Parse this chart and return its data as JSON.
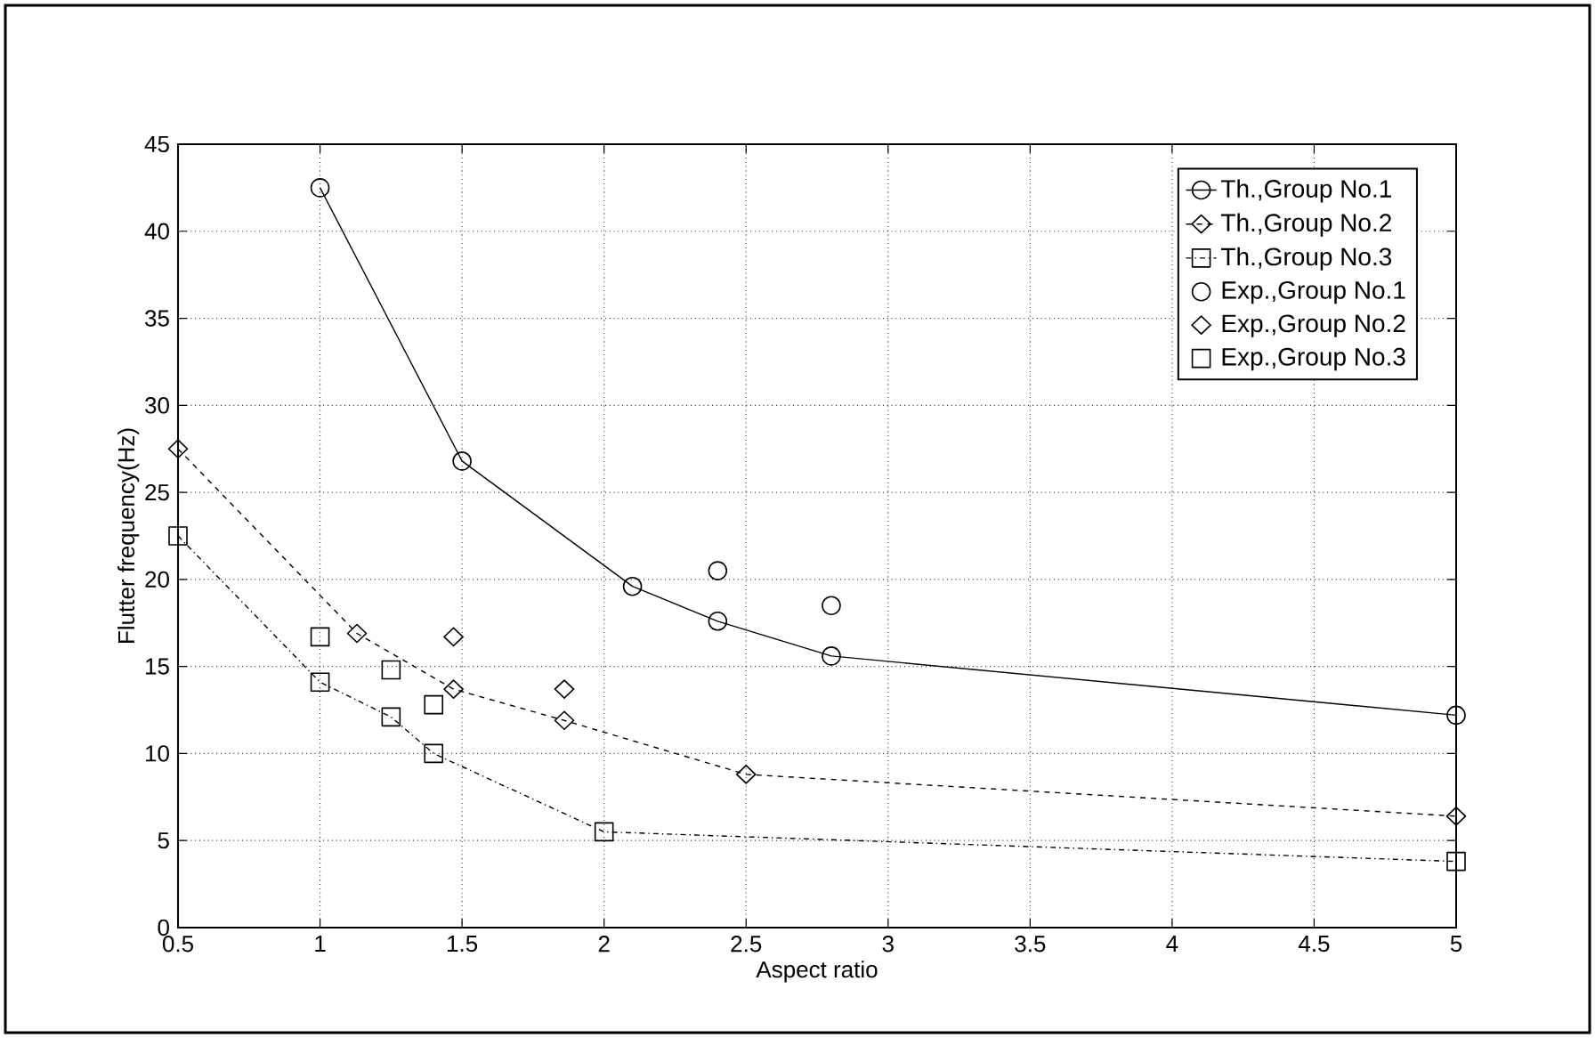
{
  "chart_data": {
    "type": "line",
    "xlabel": "Aspect ratio",
    "ylabel": "Flutter frequency(Hz)",
    "xlim": [
      0.5,
      5
    ],
    "ylim": [
      0,
      45
    ],
    "xticks": [
      0.5,
      1,
      1.5,
      2,
      2.5,
      3,
      3.5,
      4,
      4.5,
      5
    ],
    "yticks": [
      0,
      5,
      10,
      15,
      20,
      25,
      30,
      35,
      40,
      45
    ],
    "grid": true,
    "legend": "top right",
    "series": [
      {
        "name": "Th.,Group No.1",
        "color": "#000000",
        "marker": "circle",
        "line_style": "solid",
        "x": [
          1,
          1.5,
          2.1,
          2.4,
          2.8,
          5
        ],
        "values": [
          42.5,
          26.8,
          19.6,
          17.6,
          15.6,
          12.2
        ]
      },
      {
        "name": "Th.,Group No.2",
        "color": "#000000",
        "marker": "diamond",
        "line_style": "dashed",
        "x": [
          0.5,
          1.13,
          1.47,
          1.86,
          2.5,
          5
        ],
        "values": [
          27.5,
          16.9,
          13.7,
          11.9,
          8.8,
          6.4
        ]
      },
      {
        "name": "Th.,Group No.3",
        "color": "#000000",
        "marker": "square",
        "line_style": "dashdot",
        "x": [
          0.5,
          1,
          1.25,
          1.4,
          2,
          5
        ],
        "values": [
          22.5,
          14.1,
          12.1,
          10,
          5.5,
          3.8
        ]
      },
      {
        "name": "Exp.,Group No.1",
        "type": "scatter",
        "color": "#000000",
        "marker": "circle",
        "x": [
          2.4,
          2.8
        ],
        "values": [
          20.5,
          18.5
        ]
      },
      {
        "name": "Exp.,Group No.2",
        "type": "scatter",
        "color": "#000000",
        "marker": "diamond",
        "x": [
          1.47,
          1.86
        ],
        "values": [
          16.7,
          13.7
        ]
      },
      {
        "name": "Exp.,Group No.3",
        "type": "scatter",
        "color": "#000000",
        "marker": "square",
        "x": [
          1,
          1.25,
          1.4
        ],
        "values": [
          16.7,
          14.8,
          12.8
        ]
      }
    ]
  }
}
